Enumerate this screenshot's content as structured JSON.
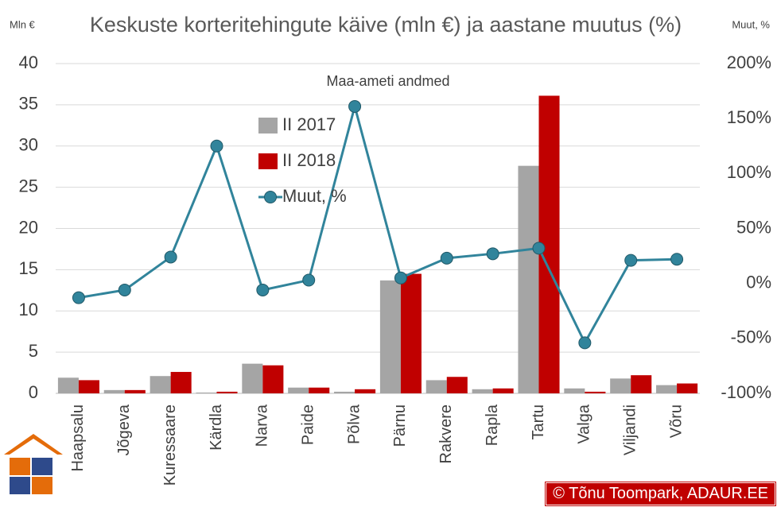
{
  "chart_data": {
    "type": "bar",
    "title": "Keskuste korteritehingute käive (mln €) ja aastane muutus (%)",
    "subtitle": "Maa-ameti andmed",
    "y_label": "Mln €",
    "y2_label": "Muut, %",
    "credit": "© Tõnu Toompark, ADAUR.EE",
    "categories": [
      "Haapsalu",
      "Jõgeva",
      "Kuressaare",
      "Kärdla",
      "Narva",
      "Paide",
      "Põlva",
      "Pärnu",
      "Rakvere",
      "Rapla",
      "Tartu",
      "Valga",
      "Viljandi",
      "Võru"
    ],
    "series": [
      {
        "name": "II 2017",
        "type": "bar",
        "color": "#a5a5a5",
        "values": [
          1.9,
          0.4,
          2.1,
          0.1,
          3.6,
          0.7,
          0.2,
          13.7,
          1.6,
          0.5,
          27.6,
          0.6,
          1.8,
          1.0
        ]
      },
      {
        "name": "II 2018",
        "type": "bar",
        "color": "#c00000",
        "values": [
          1.6,
          0.4,
          2.6,
          0.2,
          3.4,
          0.7,
          0.5,
          14.5,
          2.0,
          0.6,
          36.1,
          0.2,
          2.2,
          1.2
        ]
      },
      {
        "name": "Muut, %",
        "type": "line",
        "axis": "y2",
        "color": "#31849b",
        "values": [
          -13,
          -6,
          24,
          125,
          -6,
          3,
          161,
          5,
          23,
          27,
          32,
          -54,
          21,
          22
        ]
      }
    ],
    "ylim": [
      0,
      40
    ],
    "yticks": [
      0,
      5,
      10,
      15,
      20,
      25,
      30,
      35,
      40
    ],
    "y2lim": [
      -100,
      200
    ],
    "y2ticks": [
      {
        "value": -100,
        "label": "-100%"
      },
      {
        "value": -50,
        "label": "-50%"
      },
      {
        "value": 0,
        "label": "0%"
      },
      {
        "value": 50,
        "label": "50%"
      },
      {
        "value": 100,
        "label": "100%"
      },
      {
        "value": 150,
        "label": "150%"
      },
      {
        "value": 200,
        "label": "200%"
      }
    ],
    "grid": true
  }
}
